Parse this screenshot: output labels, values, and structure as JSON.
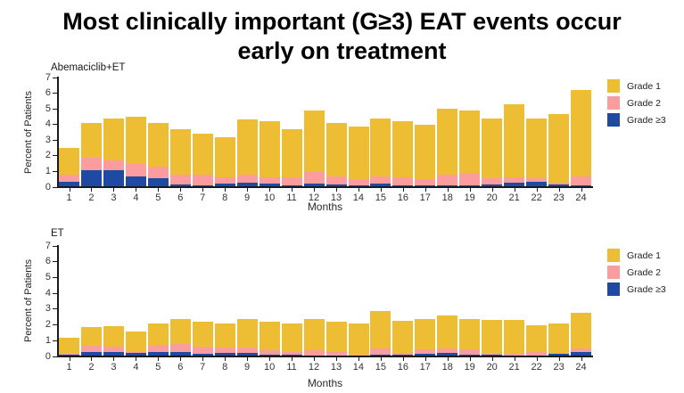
{
  "title": {
    "line1": "Most clinically important (G≥3) EAT events occur",
    "line2": "early on treatment"
  },
  "colors": {
    "grade1": "#EDBD33",
    "grade2": "#FB9D9E",
    "grade3": "#1F4AA3",
    "axis": "#1a1a1a"
  },
  "legend": {
    "items": [
      {
        "label": "Grade 1",
        "color": "#EDBD33"
      },
      {
        "label": "Grade 2",
        "color": "#FB9D9E"
      },
      {
        "label": "Grade ≥3",
        "color": "#1F4AA3"
      }
    ]
  },
  "chart_data": [
    {
      "type": "bar",
      "stacked": true,
      "title": "Abemaciclib+ET",
      "xlabel": "Months",
      "ylabel": "Percent of Patients",
      "ylim": [
        0,
        7
      ],
      "yticks": [
        0,
        1,
        2,
        3,
        4,
        5,
        6,
        7
      ],
      "grid": false,
      "legend_position": "right",
      "categories": [
        "1",
        "2",
        "3",
        "4",
        "5",
        "6",
        "7",
        "8",
        "9",
        "10",
        "11",
        "12",
        "13",
        "14",
        "15",
        "16",
        "17",
        "18",
        "19",
        "20",
        "21",
        "22",
        "23",
        "24"
      ],
      "series": [
        {
          "name": "Grade ≥3",
          "color": "#1F4AA3",
          "values": [
            0.35,
            1.1,
            1.1,
            0.7,
            0.6,
            0.2,
            0.1,
            0.2,
            0.3,
            0.2,
            0.1,
            0.2,
            0.2,
            0.1,
            0.2,
            0.1,
            0.1,
            0.1,
            0.1,
            0.15,
            0.3,
            0.35,
            0.15,
            0.1
          ]
        },
        {
          "name": "Grade 2",
          "color": "#FB9D9E",
          "values": [
            0.45,
            0.8,
            0.6,
            0.8,
            0.7,
            0.6,
            0.7,
            0.4,
            0.5,
            0.45,
            0.5,
            0.75,
            0.5,
            0.4,
            0.5,
            0.5,
            0.4,
            0.7,
            0.8,
            0.45,
            0.35,
            0.25,
            0.15,
            0.6
          ]
        },
        {
          "name": "Grade 1",
          "color": "#EDBD33",
          "values": [
            1.7,
            2.2,
            2.7,
            3.0,
            2.8,
            2.9,
            2.6,
            2.6,
            3.5,
            3.55,
            3.1,
            3.95,
            3.4,
            3.4,
            3.7,
            3.6,
            3.5,
            4.2,
            4.0,
            3.8,
            4.65,
            3.8,
            4.4,
            5.5
          ]
        }
      ]
    },
    {
      "type": "bar",
      "stacked": true,
      "title": "ET",
      "xlabel": "Months",
      "ylabel": "Percent of Patients",
      "ylim": [
        0,
        7
      ],
      "yticks": [
        0,
        1,
        2,
        3,
        4,
        5,
        6,
        7
      ],
      "grid": false,
      "legend_position": "right",
      "categories": [
        "1",
        "2",
        "3",
        "4",
        "5",
        "6",
        "7",
        "8",
        "9",
        "10",
        "11",
        "12",
        "13",
        "14",
        "15",
        "16",
        "17",
        "18",
        "19",
        "20",
        "21",
        "22",
        "23",
        "24"
      ],
      "series": [
        {
          "name": "Grade ≥3",
          "color": "#1F4AA3",
          "values": [
            0.1,
            0.3,
            0.3,
            0.2,
            0.3,
            0.3,
            0.15,
            0.2,
            0.25,
            0.1,
            0.1,
            0.05,
            0.05,
            0.05,
            0.1,
            0.1,
            0.15,
            0.2,
            0.1,
            0.1,
            0.05,
            0.05,
            0.15,
            0.3
          ]
        },
        {
          "name": "Grade 2",
          "color": "#FB9D9E",
          "values": [
            0.05,
            0.4,
            0.3,
            0.1,
            0.45,
            0.5,
            0.45,
            0.35,
            0.3,
            0.3,
            0.2,
            0.35,
            0.3,
            0.05,
            0.4,
            0.1,
            0.3,
            0.3,
            0.35,
            0.05,
            0.1,
            0.25,
            0.1,
            0.2
          ]
        },
        {
          "name": "Grade 1",
          "color": "#EDBD33",
          "values": [
            1.05,
            1.15,
            1.3,
            1.3,
            1.35,
            1.6,
            1.6,
            1.55,
            1.85,
            1.8,
            1.8,
            2.0,
            1.85,
            2.0,
            2.4,
            2.05,
            1.9,
            2.1,
            1.95,
            2.15,
            2.15,
            1.7,
            1.85,
            2.3
          ]
        }
      ]
    }
  ]
}
